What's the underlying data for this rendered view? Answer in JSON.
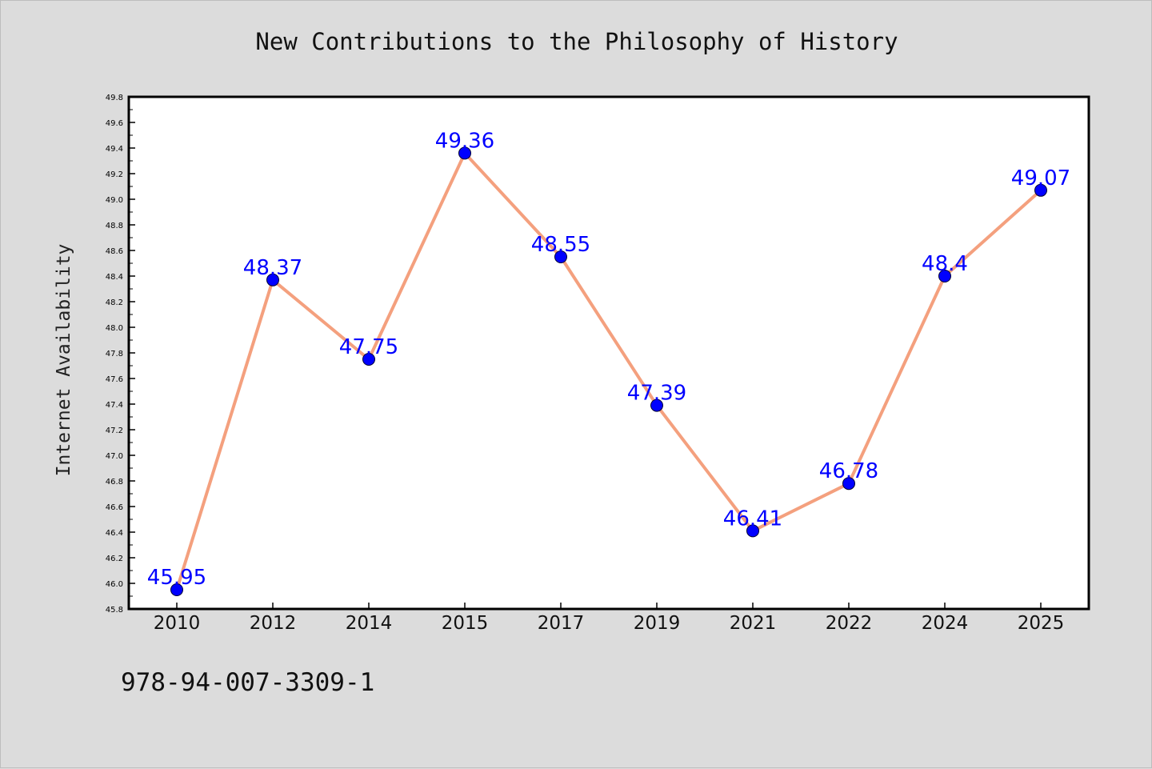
{
  "chart_data": {
    "type": "line",
    "title": "New Contributions to the Philosophy of History",
    "xlabel": "",
    "ylabel": "Internet Availability",
    "categories": [
      "2010",
      "2012",
      "2014",
      "2015",
      "2017",
      "2019",
      "2021",
      "2022",
      "2024",
      "2025"
    ],
    "series": [
      {
        "values": [
          45.95,
          48.37,
          47.75,
          49.36,
          48.55,
          47.39,
          46.41,
          46.78,
          48.4,
          49.07
        ],
        "data_labels": [
          "45.95",
          "48.37",
          "47.75",
          "49.36",
          "48.55",
          "47.39",
          "46.41",
          "46.78",
          "48.4",
          "49.07"
        ],
        "line_color": "#f4a07e",
        "marker_color": "#0000ff"
      }
    ],
    "ylim": [
      45.8,
      49.8
    ],
    "yticks": [
      "45.8",
      "46.0",
      "46.2",
      "46.4",
      "46.6",
      "46.8",
      "47.0",
      "47.2",
      "47.4",
      "47.6",
      "47.8",
      "48.0",
      "48.2",
      "48.4",
      "48.6",
      "48.8",
      "49.0",
      "49.2",
      "49.4",
      "49.6",
      "49.8"
    ],
    "grid": false,
    "legend": "none",
    "label_color": "#0000ff",
    "plot_background": "#ffffff",
    "figure_background": "#dcdcdc"
  },
  "footer_text": "978-94-007-3309-1"
}
